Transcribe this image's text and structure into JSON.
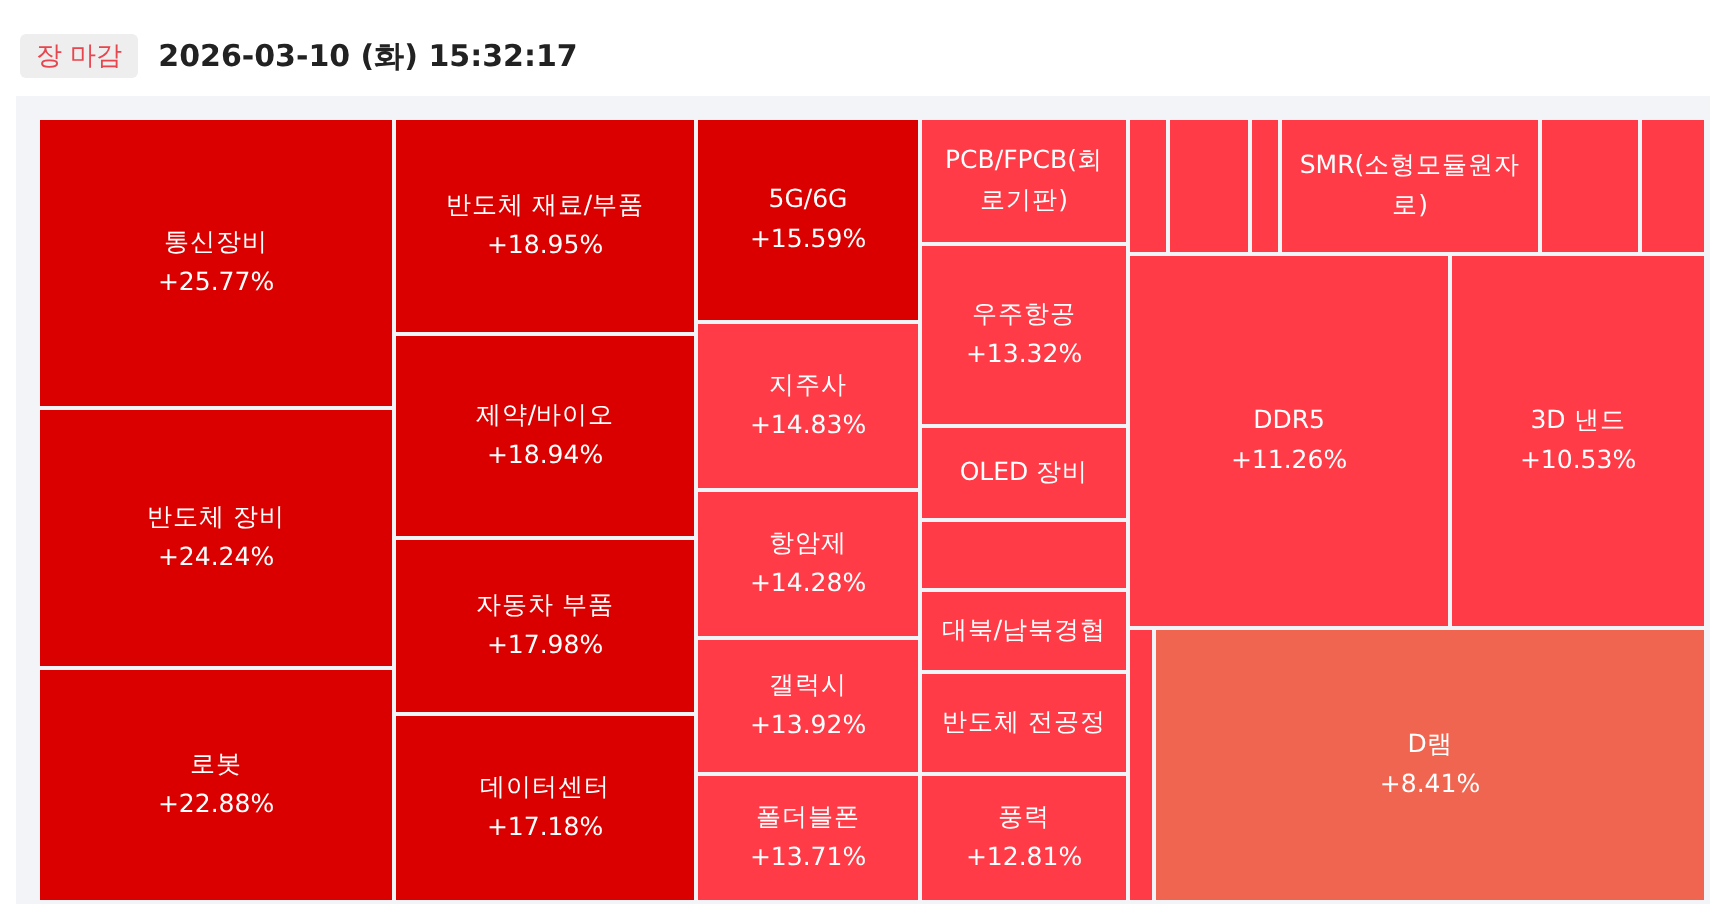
{
  "chart_data": {
    "type": "other",
    "title": "2026-03-10 (화) 15:32:17",
    "subtitle": "장 마감",
    "categories": [
      "통신장비",
      "반도체 장비",
      "로봇",
      "반도체 재료/부품",
      "제약/바이오",
      "자동차 부품",
      "데이터센터",
      "5G/6G",
      "지주사",
      "항암제",
      "갤럭시",
      "폴더블폰",
      "PCB/FPCB(회로기판)",
      "우주항공",
      "OLED 장비",
      null,
      "대북/남북경협",
      "반도체 전공정",
      "풍력",
      null,
      null,
      null,
      "SMR(소형모듈원자로)",
      null,
      null,
      "DDR5",
      "3D 낸드",
      null,
      "D램"
    ],
    "values": [
      25.77,
      24.24,
      22.88,
      18.95,
      18.94,
      17.98,
      17.18,
      15.59,
      14.83,
      14.28,
      13.92,
      13.71,
      null,
      13.32,
      null,
      null,
      null,
      null,
      12.81,
      null,
      null,
      null,
      null,
      null,
      null,
      11.26,
      10.53,
      null,
      8.41
    ],
    "value_labels": [
      "+25.77%",
      "+24.24%",
      "+22.88%",
      "+18.95%",
      "+18.94%",
      "+17.98%",
      "+17.18%",
      "+15.59%",
      "+14.83%",
      "+14.28%",
      "+13.92%",
      "+13.71%",
      null,
      "+13.32%",
      null,
      null,
      null,
      null,
      "+12.81%",
      null,
      null,
      null,
      null,
      null,
      null,
      "+11.26%",
      "+10.53%",
      null,
      "+8.41%"
    ],
    "colors": [
      "#da0000",
      "#da0000",
      "#da0000",
      "#da0000",
      "#da0000",
      "#da0000",
      "#da0000",
      "#da0000",
      "#ff3b47",
      "#ff3b47",
      "#ff3b47",
      "#ff3b47",
      "#ff3b47",
      "#ff3b47",
      "#ff3b47",
      "#ff3b47",
      "#ff3b47",
      "#ff3b47",
      "#ff3b47",
      "#ff3b47",
      "#ff3b47",
      "#ff3b47",
      "#ff3b47",
      "#ff3b47",
      "#ff3b47",
      "#ff3b47",
      "#ff3b47",
      "#ff3b47",
      "#f0654f"
    ]
  }
}
